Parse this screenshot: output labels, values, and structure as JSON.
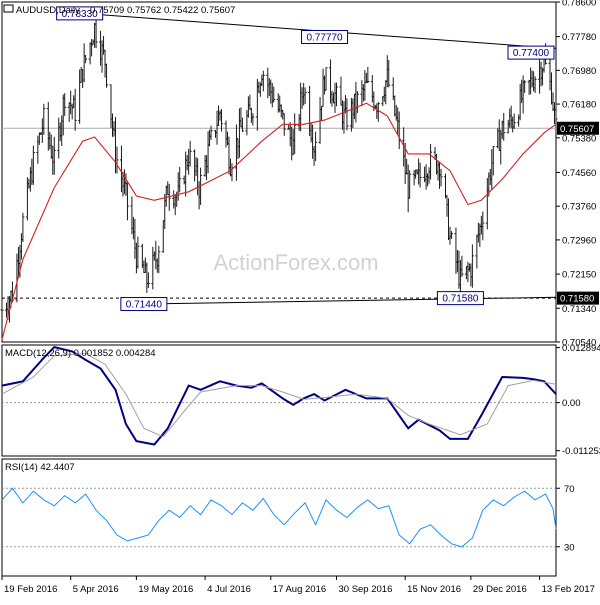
{
  "chart_data": [
    {
      "type": "ohlc",
      "panel": "price",
      "title": "AUDUSD,Daily",
      "ohlc_label": "0.75709 0.75762 0.75422 0.75607",
      "ylim": [
        0.7054,
        0.786
      ],
      "y_ticks": [
        "0.78600",
        "0.77780",
        "0.76980",
        "0.76180",
        "0.75380",
        "0.74560",
        "0.73760",
        "0.72960",
        "0.72150",
        "0.71340",
        "0.70540"
      ],
      "last_price_label": "0.75607",
      "last_price": 0.75607,
      "support_label": "0.71580",
      "support_level": 0.7158,
      "annotations": [
        {
          "text": "0.78330",
          "date": "2016-04-11",
          "value": 0.7833
        },
        {
          "text": "0.71440",
          "date": "2016-05-24",
          "value": 0.7144
        },
        {
          "text": "0.77770",
          "date": "2016-09-22",
          "value": 0.7777
        },
        {
          "text": "0.71580",
          "date": "2016-12-22",
          "value": 0.7158
        },
        {
          "text": "0.77400",
          "date": "2017-02-16",
          "value": 0.774
        }
      ],
      "price_path": [
        [
          "2016-02-19",
          0.713
        ],
        [
          "2016-02-26",
          0.717
        ],
        [
          "2016-03-04",
          0.734
        ],
        [
          "2016-03-11",
          0.748
        ],
        [
          "2016-03-18",
          0.758
        ],
        [
          "2016-03-25",
          0.748
        ],
        [
          "2016-04-01",
          0.764
        ],
        [
          "2016-04-08",
          0.76
        ],
        [
          "2016-04-13",
          0.77
        ],
        [
          "2016-04-21",
          0.78
        ],
        [
          "2016-04-28",
          0.772
        ],
        [
          "2016-05-05",
          0.75
        ],
        [
          "2016-05-12",
          0.74
        ],
        [
          "2016-05-19",
          0.726
        ],
        [
          "2016-05-26",
          0.72
        ],
        [
          "2016-06-02",
          0.726
        ],
        [
          "2016-06-09",
          0.742
        ],
        [
          "2016-06-16",
          0.74
        ],
        [
          "2016-06-23",
          0.75
        ],
        [
          "2016-06-30",
          0.742
        ],
        [
          "2016-07-07",
          0.752
        ],
        [
          "2016-07-14",
          0.76
        ],
        [
          "2016-07-21",
          0.748
        ],
        [
          "2016-07-28",
          0.756
        ],
        [
          "2016-08-04",
          0.76
        ],
        [
          "2016-08-11",
          0.77
        ],
        [
          "2016-08-18",
          0.764
        ],
        [
          "2016-08-25",
          0.758
        ],
        [
          "2016-09-01",
          0.752
        ],
        [
          "2016-09-08",
          0.766
        ],
        [
          "2016-09-15",
          0.752
        ],
        [
          "2016-09-22",
          0.768
        ],
        [
          "2016-09-29",
          0.764
        ],
        [
          "2016-10-06",
          0.758
        ],
        [
          "2016-10-13",
          0.762
        ],
        [
          "2016-10-20",
          0.766
        ],
        [
          "2016-10-27",
          0.762
        ],
        [
          "2016-11-03",
          0.768
        ],
        [
          "2016-11-10",
          0.756
        ],
        [
          "2016-11-17",
          0.742
        ],
        [
          "2016-11-24",
          0.744
        ],
        [
          "2016-12-01",
          0.748
        ],
        [
          "2016-12-08",
          0.748
        ],
        [
          "2016-12-15",
          0.73
        ],
        [
          "2016-12-22",
          0.72
        ],
        [
          "2016-12-29",
          0.723
        ],
        [
          "2017-01-05",
          0.734
        ],
        [
          "2017-01-12",
          0.748
        ],
        [
          "2017-01-19",
          0.756
        ],
        [
          "2017-01-26",
          0.758
        ],
        [
          "2017-02-02",
          0.764
        ],
        [
          "2017-02-09",
          0.768
        ],
        [
          "2017-02-16",
          0.772
        ],
        [
          "2017-02-21",
          0.765
        ],
        [
          "2017-02-24",
          0.756
        ]
      ],
      "ma_path": [
        [
          "2016-02-19",
          0.706
        ],
        [
          "2016-03-04",
          0.725
        ],
        [
          "2016-03-25",
          0.742
        ],
        [
          "2016-04-13",
          0.753
        ],
        [
          "2016-04-21",
          0.754
        ],
        [
          "2016-05-05",
          0.748
        ],
        [
          "2016-05-19",
          0.74
        ],
        [
          "2016-05-31",
          0.739
        ],
        [
          "2016-06-23",
          0.741
        ],
        [
          "2016-07-21",
          0.746
        ],
        [
          "2016-08-11",
          0.753
        ],
        [
          "2016-08-25",
          0.757
        ],
        [
          "2016-09-08",
          0.757
        ],
        [
          "2016-09-22",
          0.758
        ],
        [
          "2016-10-06",
          0.76
        ],
        [
          "2016-10-20",
          0.762
        ],
        [
          "2016-11-03",
          0.759
        ],
        [
          "2016-11-17",
          0.75
        ],
        [
          "2016-12-01",
          0.75
        ],
        [
          "2016-12-15",
          0.746
        ],
        [
          "2016-12-27",
          0.738
        ],
        [
          "2017-01-05",
          0.739
        ],
        [
          "2017-01-19",
          0.744
        ],
        [
          "2017-02-02",
          0.75
        ],
        [
          "2017-02-16",
          0.755
        ],
        [
          "2017-02-24",
          0.757
        ]
      ],
      "trendlines": [
        {
          "from": [
            "2016-04-13",
            0.7833
          ],
          "to": [
            "2017-02-24",
            0.775
          ]
        },
        {
          "from": [
            "2016-05-24",
            0.7144
          ],
          "to": [
            "2017-02-24",
            0.716
          ]
        }
      ],
      "watermark": "ActionForex.com"
    },
    {
      "type": "line",
      "panel": "macd",
      "title": "MACD(12,26,9) 0.001852 0.004284",
      "ylim": [
        -0.0125,
        0.0135
      ],
      "y_ticks": [
        "0.012894",
        "0.00",
        "-0.011253"
      ],
      "zero_line": 0,
      "series": [
        {
          "name": "",
          "color": "#000080",
          "values": [
            [
              "2016-02-19",
              0.004
            ],
            [
              "2016-03-04",
              0.005
            ],
            [
              "2016-03-18",
              0.0105
            ],
            [
              "2016-03-25",
              0.013
            ],
            [
              "2016-04-06",
              0.012
            ],
            [
              "2016-04-15",
              0.01
            ],
            [
              "2016-04-25",
              0.008
            ],
            [
              "2016-05-05",
              0.003
            ],
            [
              "2016-05-12",
              -0.005
            ],
            [
              "2016-05-19",
              -0.009
            ],
            [
              "2016-05-31",
              -0.0098
            ],
            [
              "2016-06-09",
              -0.006
            ],
            [
              "2016-06-16",
              -0.001
            ],
            [
              "2016-06-23",
              0.004
            ],
            [
              "2016-07-01",
              0.003
            ],
            [
              "2016-07-14",
              0.005
            ],
            [
              "2016-07-25",
              0.004
            ],
            [
              "2016-08-04",
              0.0035
            ],
            [
              "2016-08-11",
              0.0045
            ],
            [
              "2016-08-25",
              0.001
            ],
            [
              "2016-09-01",
              -0.0005
            ],
            [
              "2016-09-08",
              0.001
            ],
            [
              "2016-09-15",
              0.002
            ],
            [
              "2016-09-22",
              0.0005
            ],
            [
              "2016-10-06",
              0.003
            ],
            [
              "2016-10-20",
              0.001
            ],
            [
              "2016-11-03",
              0.001
            ],
            [
              "2016-11-17",
              -0.006
            ],
            [
              "2016-11-24",
              -0.004
            ],
            [
              "2016-12-08",
              -0.0065
            ],
            [
              "2016-12-15",
              -0.0085
            ],
            [
              "2016-12-27",
              -0.0085
            ],
            [
              "2017-01-05",
              -0.003
            ],
            [
              "2017-01-19",
              0.006
            ],
            [
              "2017-02-02",
              0.0058
            ],
            [
              "2017-02-09",
              0.0055
            ],
            [
              "2017-02-16",
              0.005
            ],
            [
              "2017-02-24",
              0.002
            ]
          ]
        },
        {
          "name": "",
          "color": "#a0a0a0",
          "values": [
            [
              "2016-02-19",
              0.002
            ],
            [
              "2016-03-11",
              0.006
            ],
            [
              "2016-03-25",
              0.011
            ],
            [
              "2016-04-15",
              0.0115
            ],
            [
              "2016-04-28",
              0.009
            ],
            [
              "2016-05-12",
              0.002
            ],
            [
              "2016-05-24",
              -0.006
            ],
            [
              "2016-06-06",
              -0.008
            ],
            [
              "2016-06-20",
              -0.002
            ],
            [
              "2016-07-01",
              0.0025
            ],
            [
              "2016-07-25",
              0.004
            ],
            [
              "2016-08-11",
              0.004
            ],
            [
              "2016-08-25",
              0.0025
            ],
            [
              "2016-09-08",
              0.0008
            ],
            [
              "2016-09-22",
              0.0012
            ],
            [
              "2016-10-13",
              0.002
            ],
            [
              "2016-11-03",
              0.001
            ],
            [
              "2016-11-17",
              -0.003
            ],
            [
              "2016-12-01",
              -0.005
            ],
            [
              "2016-12-22",
              -0.0075
            ],
            [
              "2017-01-09",
              -0.005
            ],
            [
              "2017-01-23",
              0.004
            ],
            [
              "2017-02-09",
              0.0052
            ],
            [
              "2017-02-24",
              0.0043
            ]
          ]
        }
      ]
    },
    {
      "type": "line",
      "panel": "rsi",
      "title": "RSI(14) 42.4407",
      "ylim": [
        10,
        90
      ],
      "y_ticks": [
        "70",
        "30"
      ],
      "levels": [
        70,
        30
      ],
      "series": [
        {
          "name": "",
          "color": "#1e90ff",
          "values": [
            [
              "2016-02-19",
              62
            ],
            [
              "2016-02-26",
              70
            ],
            [
              "2016-03-04",
              60
            ],
            [
              "2016-03-11",
              68
            ],
            [
              "2016-03-18",
              62
            ],
            [
              "2016-03-25",
              58
            ],
            [
              "2016-04-01",
              65
            ],
            [
              "2016-04-08",
              60
            ],
            [
              "2016-04-15",
              66
            ],
            [
              "2016-04-22",
              55
            ],
            [
              "2016-04-29",
              48
            ],
            [
              "2016-05-06",
              38
            ],
            [
              "2016-05-13",
              34
            ],
            [
              "2016-05-20",
              36
            ],
            [
              "2016-05-27",
              38
            ],
            [
              "2016-06-03",
              48
            ],
            [
              "2016-06-10",
              55
            ],
            [
              "2016-06-17",
              50
            ],
            [
              "2016-06-24",
              58
            ],
            [
              "2016-07-01",
              52
            ],
            [
              "2016-07-08",
              62
            ],
            [
              "2016-07-15",
              58
            ],
            [
              "2016-07-22",
              52
            ],
            [
              "2016-07-29",
              60
            ],
            [
              "2016-08-05",
              55
            ],
            [
              "2016-08-12",
              63
            ],
            [
              "2016-08-19",
              52
            ],
            [
              "2016-08-26",
              45
            ],
            [
              "2016-09-02",
              53
            ],
            [
              "2016-09-09",
              60
            ],
            [
              "2016-09-16",
              45
            ],
            [
              "2016-09-23",
              62
            ],
            [
              "2016-09-30",
              55
            ],
            [
              "2016-10-07",
              50
            ],
            [
              "2016-10-14",
              57
            ],
            [
              "2016-10-21",
              62
            ],
            [
              "2016-10-28",
              56
            ],
            [
              "2016-11-04",
              58
            ],
            [
              "2016-11-11",
              38
            ],
            [
              "2016-11-18",
              32
            ],
            [
              "2016-11-25",
              42
            ],
            [
              "2016-12-02",
              45
            ],
            [
              "2016-12-09",
              38
            ],
            [
              "2016-12-16",
              32
            ],
            [
              "2016-12-23",
              30
            ],
            [
              "2016-12-30",
              36
            ],
            [
              "2017-01-06",
              55
            ],
            [
              "2017-01-13",
              62
            ],
            [
              "2017-01-20",
              58
            ],
            [
              "2017-01-27",
              64
            ],
            [
              "2017-02-03",
              68
            ],
            [
              "2017-02-10",
              62
            ],
            [
              "2017-02-17",
              66
            ],
            [
              "2017-02-22",
              56
            ],
            [
              "2017-02-24",
              42
            ]
          ]
        }
      ]
    }
  ],
  "x_axis": {
    "range": [
      "2016-02-19",
      "2017-02-24"
    ],
    "ticks": [
      {
        "label": "19 Feb 2016",
        "date": "2016-02-19"
      },
      {
        "label": "5 Apr 2016",
        "date": "2016-04-05"
      },
      {
        "label": "19 May 2016",
        "date": "2016-05-19"
      },
      {
        "label": "4 Jul 2016",
        "date": "2016-07-04"
      },
      {
        "label": "17 Aug 2016",
        "date": "2016-08-17"
      },
      {
        "label": "30 Sep 2016",
        "date": "2016-09-30"
      },
      {
        "label": "15 Nov 2016",
        "date": "2016-11-15"
      },
      {
        "label": "29 Dec 2016",
        "date": "2016-12-29"
      },
      {
        "label": "13 Feb 2017",
        "date": "2017-02-13"
      }
    ]
  },
  "colors": {
    "price": "#1a1a1a",
    "ma": "#d62020",
    "trendline": "#000000",
    "macd": "#000080",
    "signal": "#a0a0a0",
    "rsi": "#1e90ff",
    "grid": "#9a9a9a",
    "label_bg": "#ffffff",
    "label_text": "#000080",
    "watermark": "#d2d2d2"
  }
}
